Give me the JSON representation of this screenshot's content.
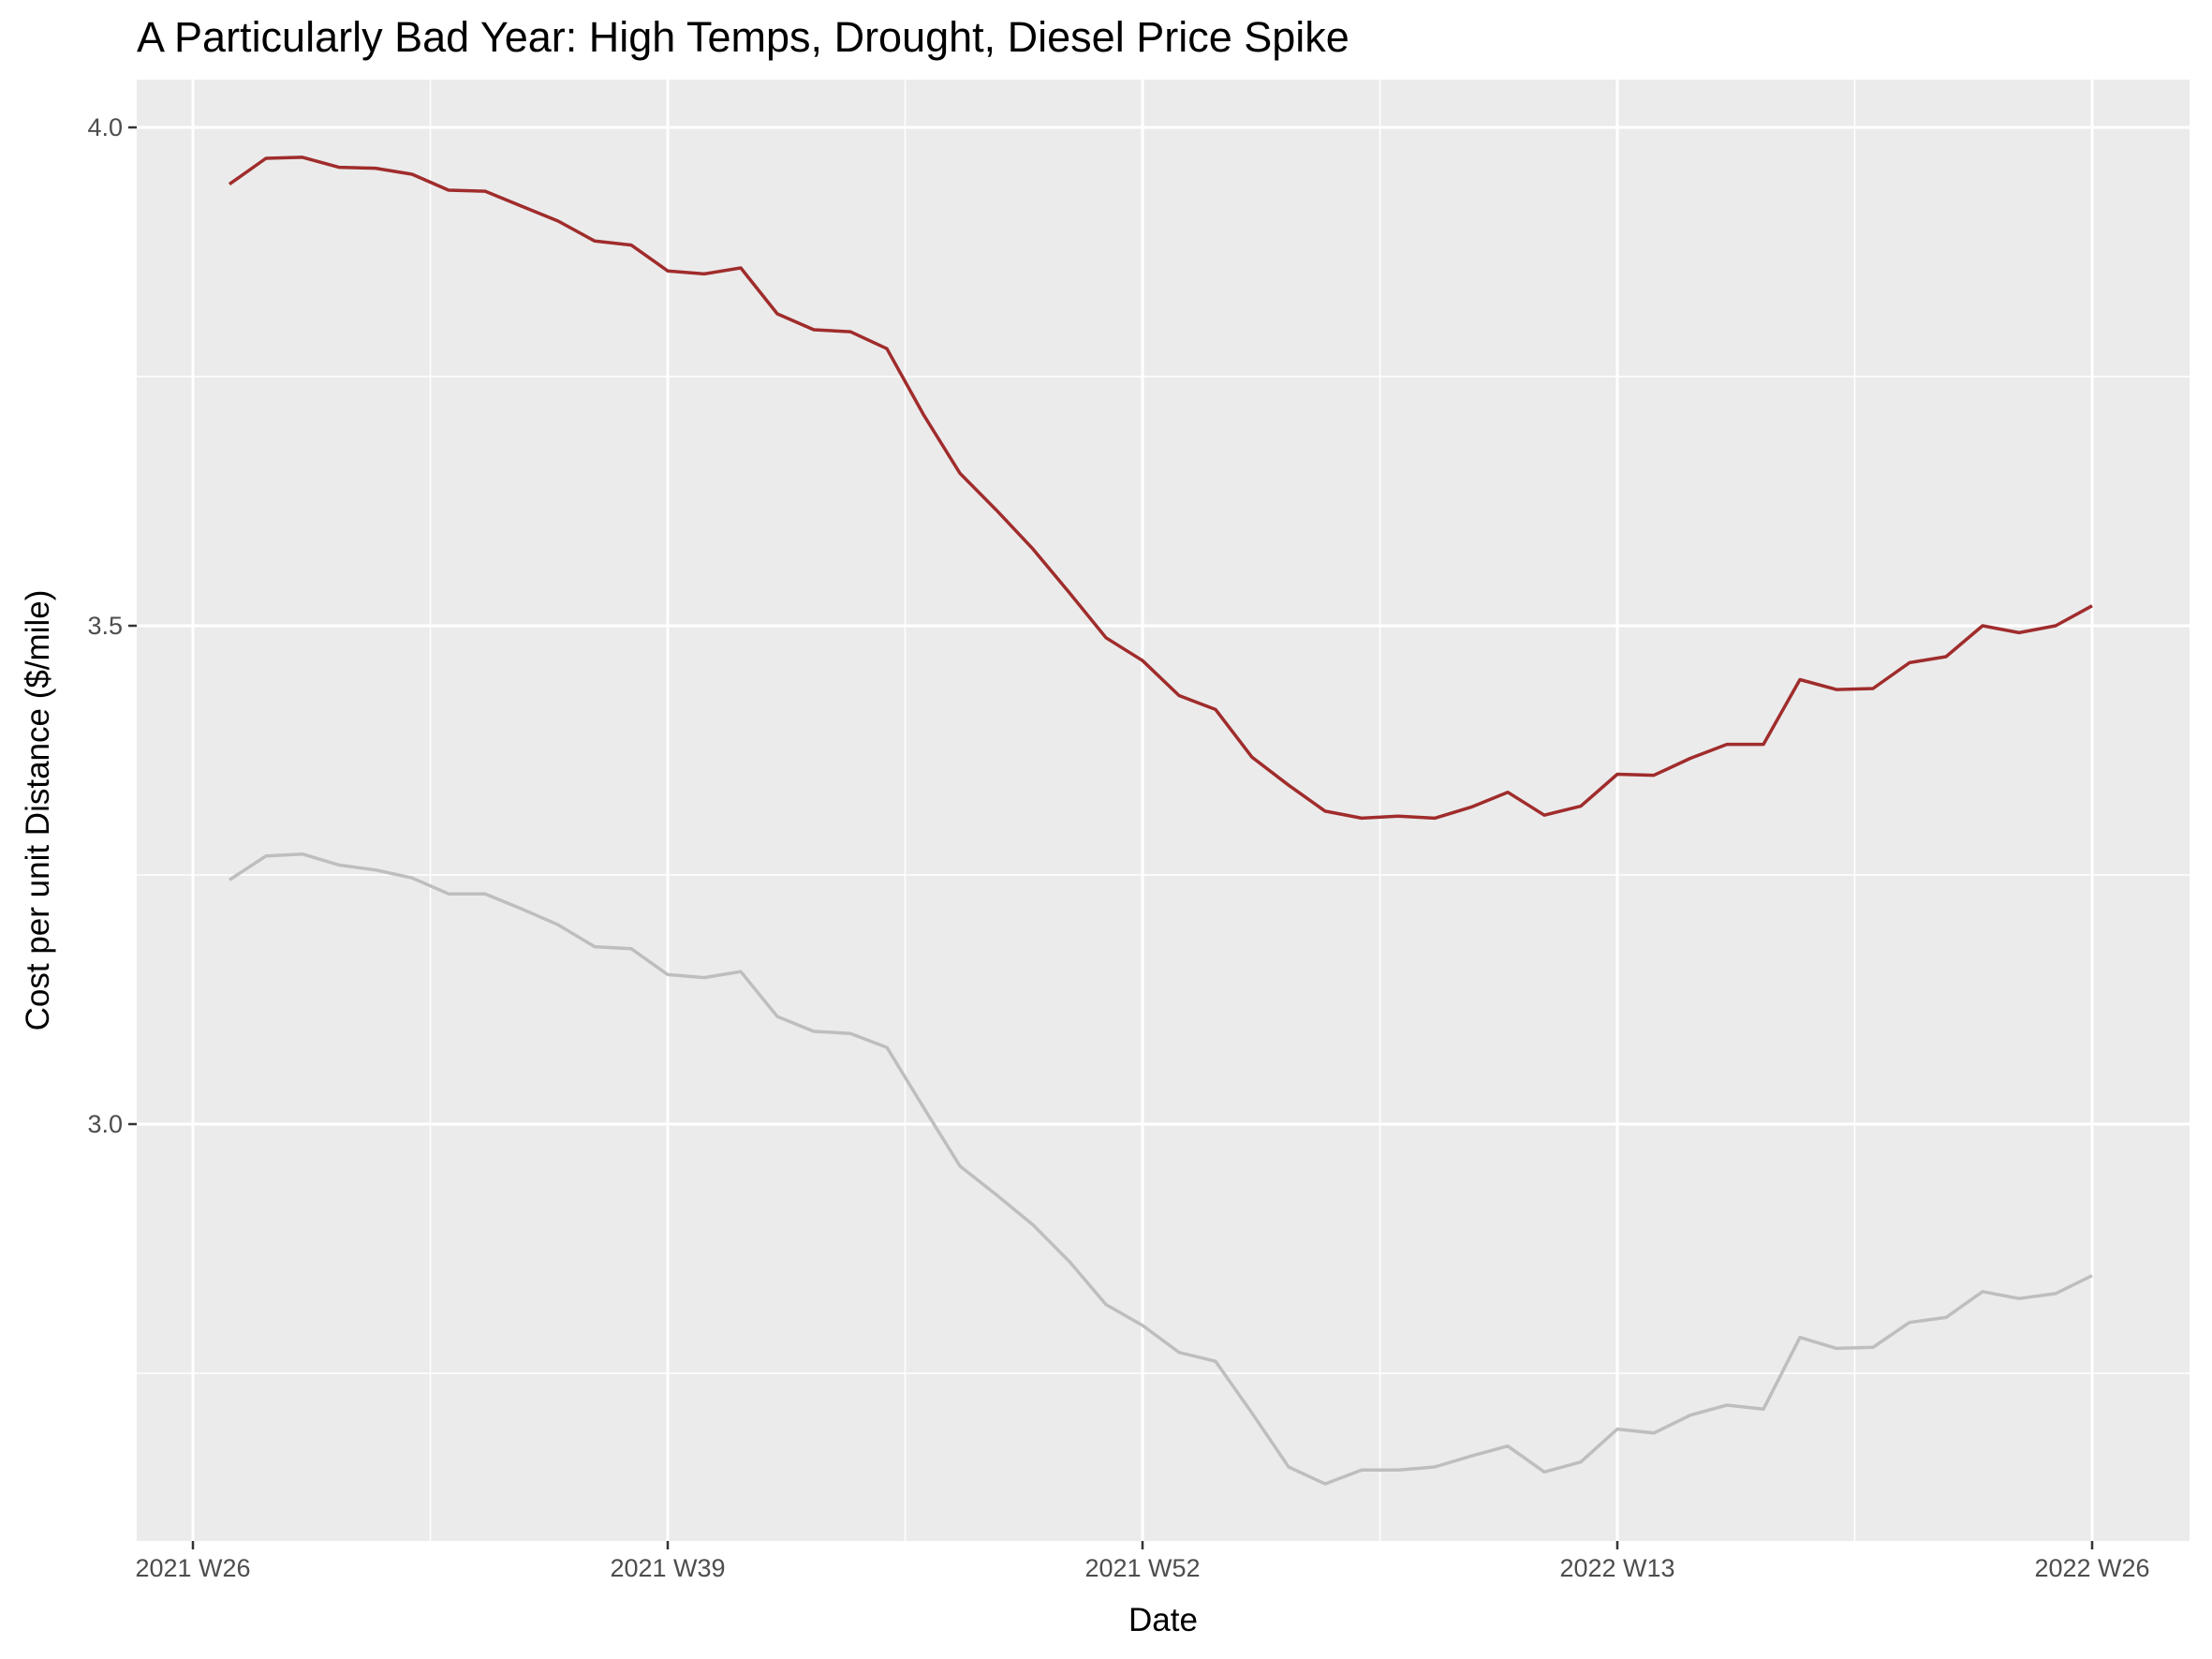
{
  "chart_data": {
    "type": "line",
    "title": "A Particularly Bad Year: High Temps, Drought, Diesel Price Spike",
    "xlabel": "Date",
    "ylabel": "Cost per unit Distance ($/mile)",
    "x_tick_labels": [
      "2021 W26",
      "2021 W39",
      "2021 W52",
      "2022 W13",
      "2022 W26"
    ],
    "x_tick_weeks": [
      0,
      13,
      26,
      39,
      52
    ],
    "y_ticks": [
      3.0,
      3.5,
      4.0
    ],
    "y_tick_labels": [
      "3.0",
      "3.5",
      "4.0"
    ],
    "ylim": [
      2.58,
      4.05
    ],
    "grid": true,
    "colors": {
      "panel_background": "#ebebeb",
      "grid": "#ffffff",
      "highlight": "#a02c2c",
      "baseline": "#bebebe"
    },
    "x_weeks": [
      1,
      2,
      3,
      4,
      5,
      6,
      7,
      8,
      9,
      10,
      11,
      12,
      13,
      14,
      15,
      16,
      17,
      18,
      19,
      20,
      21,
      22,
      23,
      24,
      25,
      26,
      27,
      28,
      29,
      30,
      31,
      32,
      33,
      34,
      35,
      36,
      37,
      38,
      39,
      40,
      41,
      42,
      43,
      44,
      45,
      46,
      47,
      48,
      49,
      50,
      51,
      52
    ],
    "series": [
      {
        "color": "#a02c2c",
        "values": [
          3.943,
          3.969,
          3.97,
          3.96,
          3.959,
          3.953,
          3.937,
          3.936,
          3.921,
          3.906,
          3.886,
          3.882,
          3.856,
          3.853,
          3.859,
          3.813,
          3.797,
          3.795,
          3.778,
          3.712,
          3.653,
          3.616,
          3.577,
          3.533,
          3.488,
          3.465,
          3.43,
          3.416,
          3.368,
          3.34,
          3.314,
          3.307,
          3.309,
          3.307,
          3.318,
          3.333,
          3.31,
          3.319,
          3.351,
          3.35,
          3.367,
          3.381,
          3.381,
          3.446,
          3.436,
          3.437,
          3.463,
          3.469,
          3.5,
          3.493,
          3.5,
          3.52
        ]
      },
      {
        "color": "#bebebe",
        "values": [
          3.245,
          3.269,
          3.271,
          3.26,
          3.255,
          3.247,
          3.231,
          3.231,
          3.216,
          3.2,
          3.178,
          3.176,
          3.15,
          3.147,
          3.153,
          3.108,
          3.093,
          3.091,
          3.077,
          3.017,
          2.958,
          2.929,
          2.899,
          2.862,
          2.819,
          2.798,
          2.771,
          2.762,
          2.71,
          2.656,
          2.639,
          2.653,
          2.653,
          2.656,
          2.667,
          2.677,
          2.651,
          2.661,
          2.694,
          2.69,
          2.708,
          2.718,
          2.714,
          2.786,
          2.775,
          2.776,
          2.801,
          2.806,
          2.832,
          2.825,
          2.83,
          2.848
        ]
      }
    ]
  }
}
